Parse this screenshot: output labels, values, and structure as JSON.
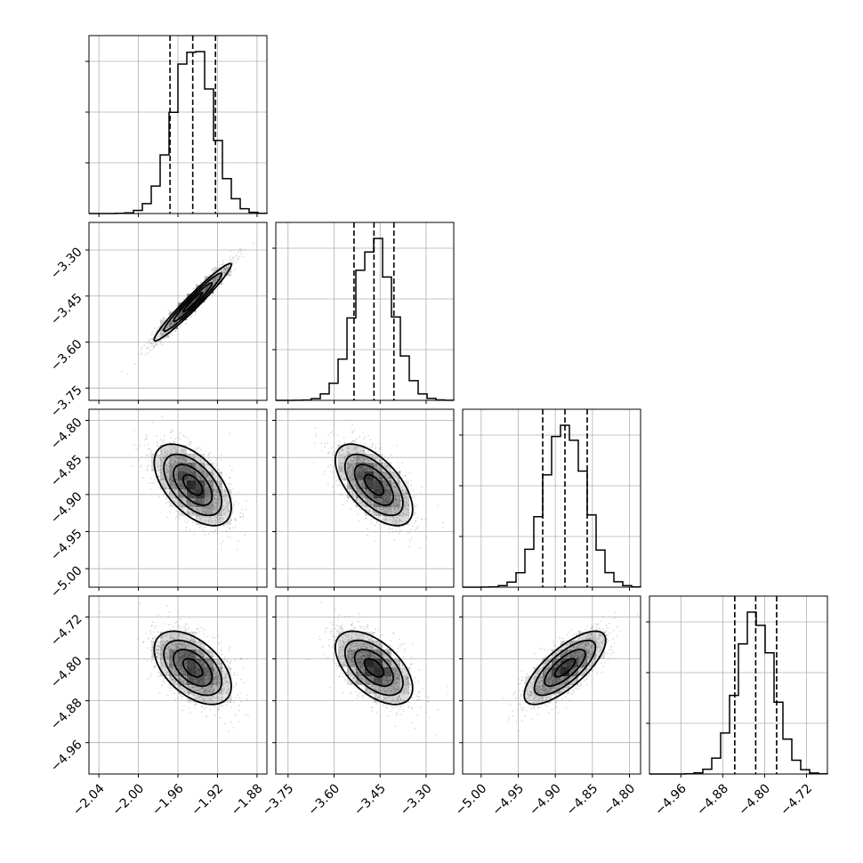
{
  "chart_data": {
    "type": "corner",
    "parameters": 4,
    "grid": true,
    "colors": {
      "axes": "#000000",
      "grid": "#b0b0b0",
      "points": "#888888",
      "density": "#000000"
    },
    "params": [
      {
        "range": [
          -2.05,
          -1.87
        ],
        "ticks": [
          -2.04,
          -2.0,
          -1.96,
          -1.92,
          -1.88
        ],
        "tick_labels": [
          "−2.04",
          "−2.00",
          "−1.96",
          "−1.92",
          "−1.88"
        ],
        "mean": -1.945,
        "sd": 0.0195,
        "quantiles": [
          -1.968,
          -1.945,
          -1.922
        ]
      },
      {
        "range": [
          -3.79,
          -3.21
        ],
        "ticks": [
          -3.75,
          -3.6,
          -3.45,
          -3.3
        ],
        "tick_labels": [
          "−3.75",
          "−3.60",
          "−3.45",
          "−3.30"
        ],
        "mean": -3.47,
        "sd": 0.063,
        "quantiles": [
          -3.535,
          -3.47,
          -3.405
        ]
      },
      {
        "range": [
          -5.025,
          -4.785
        ],
        "ticks": [
          -5.0,
          -4.95,
          -4.9,
          -4.85,
          -4.8
        ],
        "tick_labels": [
          "−5.00",
          "−4.95",
          "−4.90",
          "−4.85",
          "−4.80"
        ],
        "mean": -4.887,
        "sd": 0.0275,
        "quantiles": [
          -4.917,
          -4.887,
          -4.857
        ]
      },
      {
        "range": [
          -5.02,
          -4.68
        ],
        "ticks": [
          -4.96,
          -4.88,
          -4.8,
          -4.72
        ],
        "tick_labels": [
          "−4.96",
          "−4.88",
          "−4.80",
          "−4.72"
        ],
        "mean": -4.817,
        "sd": 0.035,
        "quantiles": [
          -4.857,
          -4.817,
          -4.777
        ]
      }
    ],
    "correlations": [
      {
        "pair": [
          0,
          1
        ],
        "rho": 0.97
      },
      {
        "pair": [
          0,
          2
        ],
        "rho": -0.55
      },
      {
        "pair": [
          1,
          2
        ],
        "rho": -0.6
      },
      {
        "pair": [
          0,
          3
        ],
        "rho": -0.5
      },
      {
        "pair": [
          1,
          3
        ],
        "rho": -0.55
      },
      {
        "pair": [
          2,
          3
        ],
        "rho": 0.75
      }
    ],
    "contour_levels_sigma": [
      0.5,
      1.0,
      1.5,
      2.0
    ]
  }
}
